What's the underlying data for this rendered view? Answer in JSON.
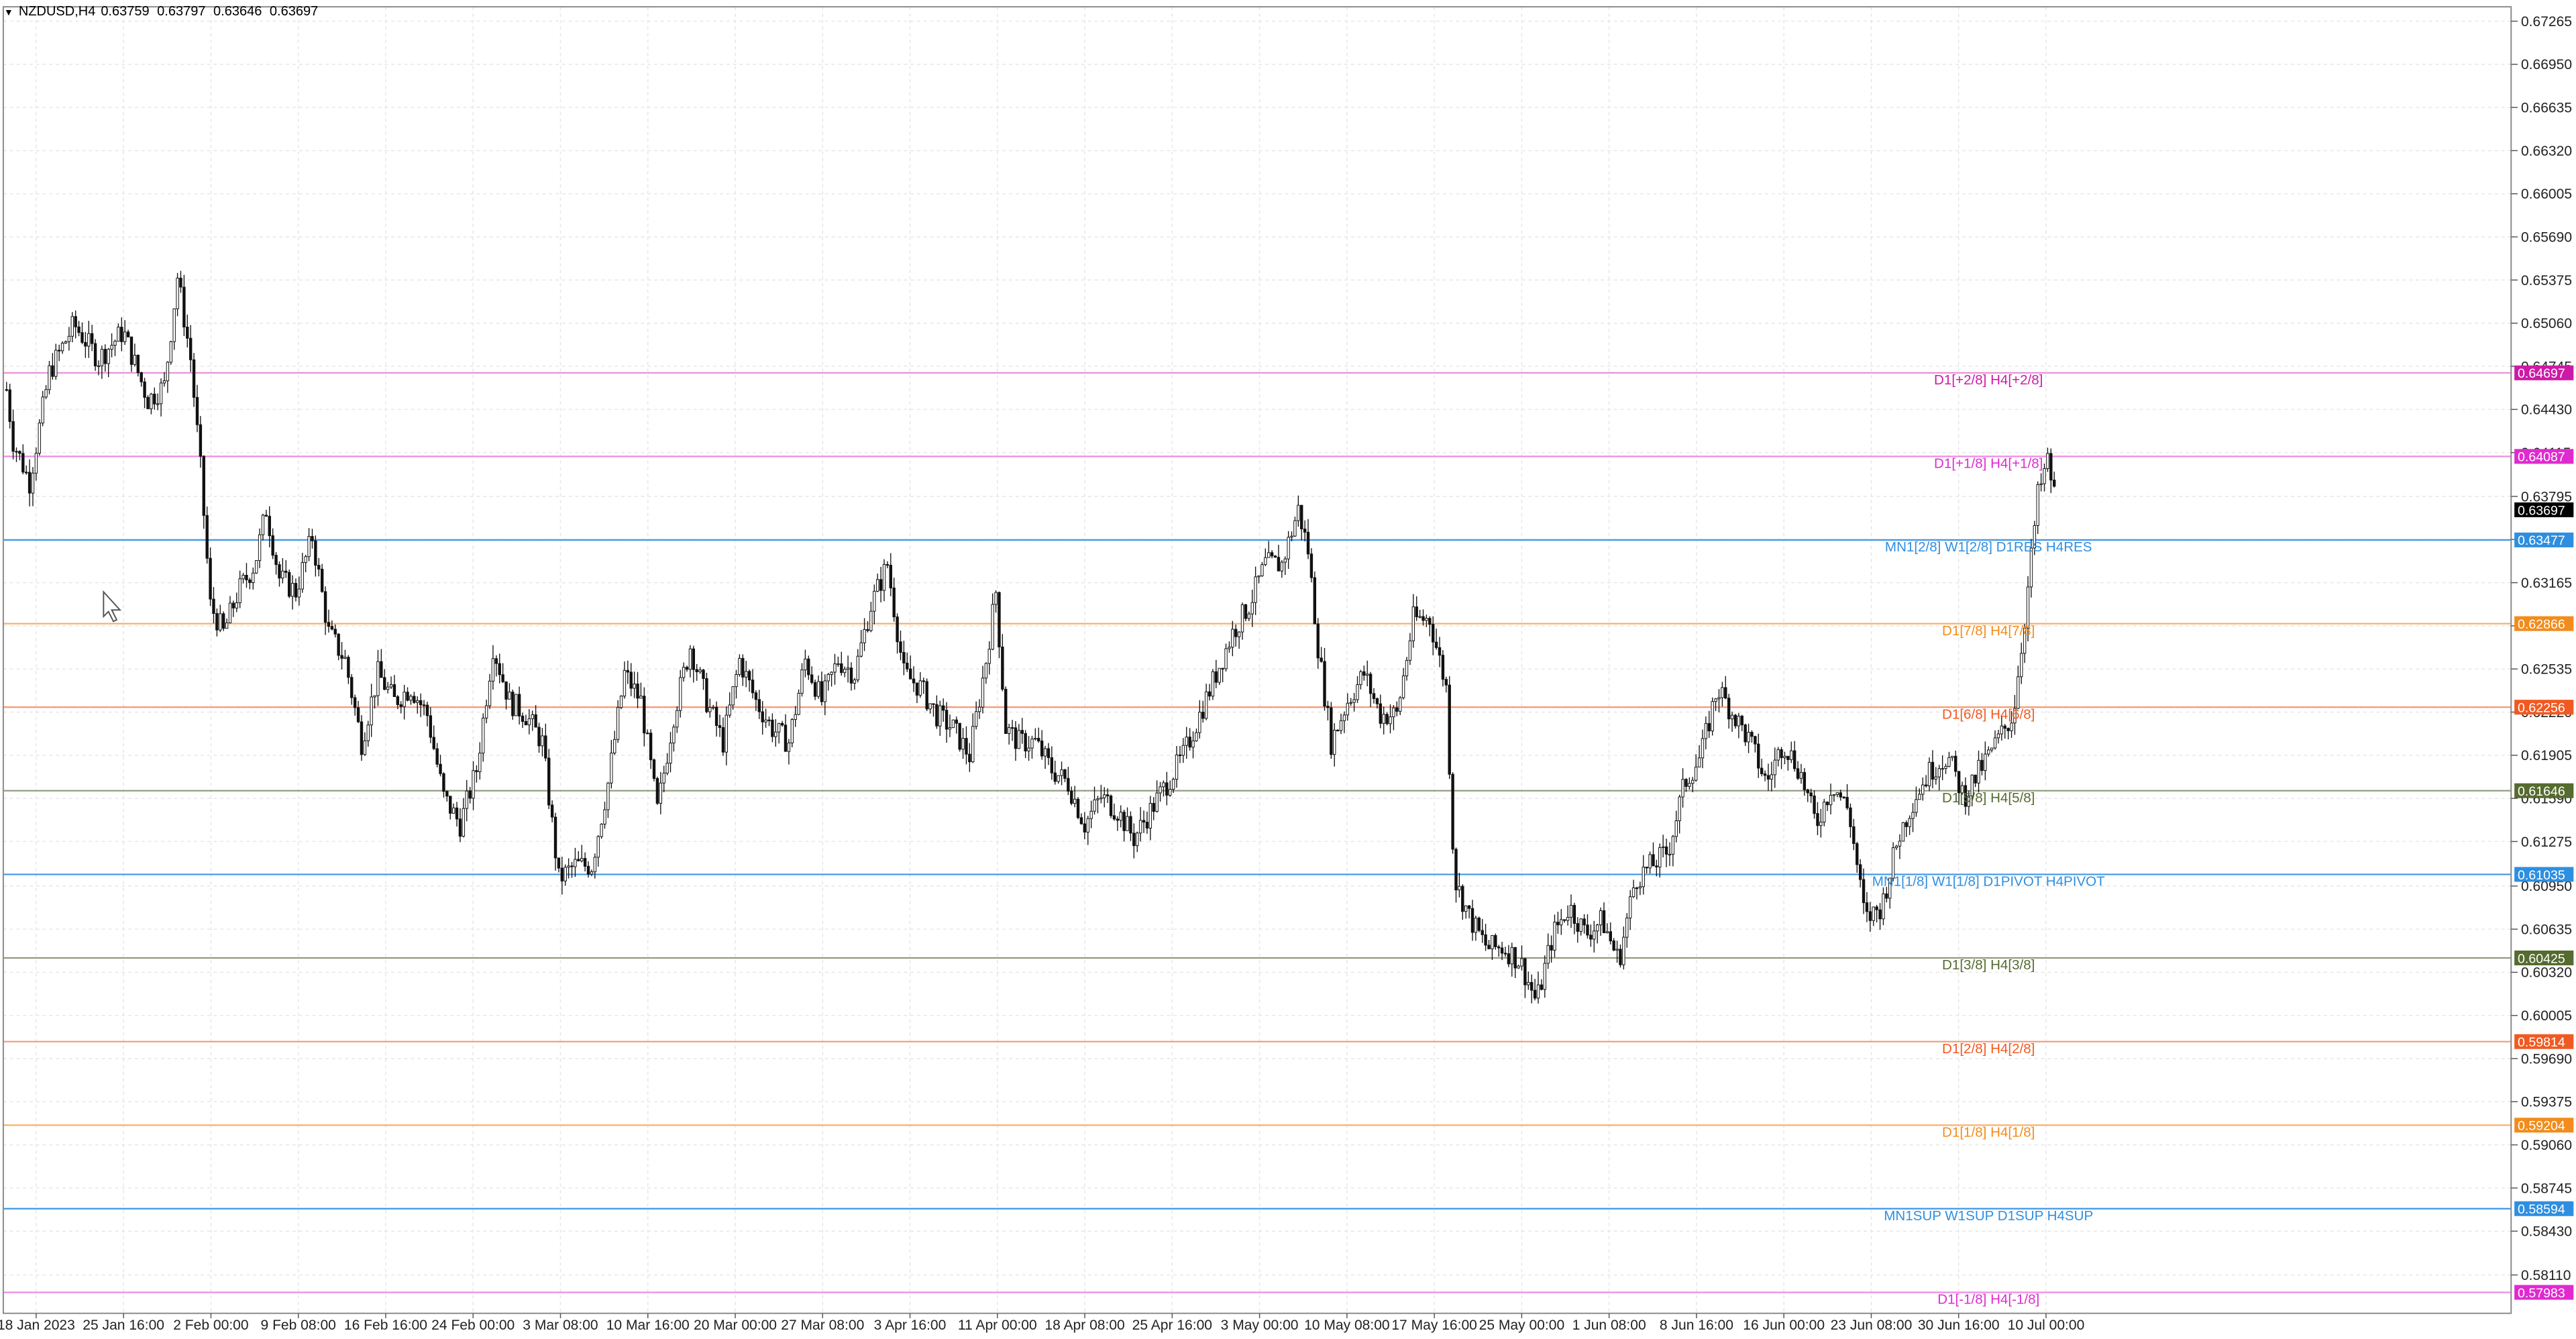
{
  "window": {
    "symbol": "NZDUSD,H4",
    "ohlc": [
      "0.63759",
      "0.63797",
      "0.63646",
      "0.63697"
    ]
  },
  "chart_data": {
    "type": "candlestick",
    "symbol": "NZDUSD",
    "timeframe": "H4",
    "ylim": [
      0.5783,
      0.6737
    ],
    "price_ticks": [
      "0.67265",
      "0.66950",
      "0.66635",
      "0.66320",
      "0.66005",
      "0.65690",
      "0.65375",
      "0.65060",
      "0.64745",
      "0.64430",
      "0.64115",
      "0.63795",
      "0.63480",
      "0.63165",
      "0.62850",
      "0.62535",
      "0.62220",
      "0.61905",
      "0.61590",
      "0.61275",
      "0.60950",
      "0.60635",
      "0.60320",
      "0.60005",
      "0.59690",
      "0.59375",
      "0.59060",
      "0.58745",
      "0.58430",
      "0.58110"
    ],
    "time_ticks": [
      "18 Jan 2023",
      "25 Jan 16:00",
      "2 Feb 00:00",
      "9 Feb 08:00",
      "16 Feb 16:00",
      "24 Feb 00:00",
      "3 Mar 08:00",
      "10 Mar 16:00",
      "20 Mar 00:00",
      "27 Mar 08:00",
      "3 Apr 16:00",
      "11 Apr 00:00",
      "18 Apr 08:00",
      "25 Apr 16:00",
      "3 May 00:00",
      "10 May 08:00",
      "17 May 16:00",
      "25 May 00:00",
      "1 Jun 08:00",
      "8 Jun 16:00",
      "16 Jun 00:00",
      "23 Jun 08:00",
      "30 Jun 16:00",
      "10 Jul 00:00"
    ],
    "current_price": {
      "value": 0.63697,
      "label": "0.63697",
      "color": "#000000"
    },
    "levels": [
      {
        "value": 0.64697,
        "label": "D1[+2/8] H4[+2/8]",
        "price_label": "0.64697",
        "color": "#cc1aa7",
        "line": "#e98ad6"
      },
      {
        "value": 0.64087,
        "label": "D1[+1/8] H4[+1/8]",
        "price_label": "0.64087",
        "color": "#e02ad0",
        "line": "#ee8ce6"
      },
      {
        "value": 0.63477,
        "label": "MN1[2/8] W1[2/8] D1RES H4RES",
        "price_label": "0.63477",
        "color": "#2e8fe0",
        "line": "#3f97e6"
      },
      {
        "value": 0.62866,
        "label": "D1[7/8] H4[7/8]",
        "price_label": "0.62866",
        "color": "#f28c1c",
        "line": "#f6b26b"
      },
      {
        "value": 0.62256,
        "label": "D1[6/8] H4[6/8]",
        "price_label": "0.62256",
        "color": "#f05a22",
        "line": "#f39a74"
      },
      {
        "value": 0.61646,
        "label": "D1[5/8] H4[5/8]",
        "price_label": "0.61646",
        "color": "#556b2f",
        "line": "#8d9a7a"
      },
      {
        "value": 0.61035,
        "label": "MN1[1/8] W1[1/8] D1PIVOT H4PIVOT",
        "price_label": "0.61035",
        "color": "#2e8fe0",
        "line": "#3f97e6"
      },
      {
        "value": 0.60425,
        "label": "D1[3/8] H4[3/8]",
        "price_label": "0.60425",
        "color": "#556b2f",
        "line": "#8d9a7a"
      },
      {
        "value": 0.59814,
        "label": "D1[2/8] H4[2/8]",
        "price_label": "0.59814",
        "color": "#f05a22",
        "line": "#f39a74"
      },
      {
        "value": 0.59204,
        "label": "D1[1/8] H4[1/8]",
        "price_label": "0.59204",
        "color": "#f28c1c",
        "line": "#f6b26b"
      },
      {
        "value": 0.58594,
        "label": "MN1SUP W1SUP D1SUP H4SUP",
        "price_label": "0.58594",
        "color": "#2e8fe0",
        "line": "#3f97e6"
      },
      {
        "value": 0.57983,
        "label": "D1[-1/8] H4[-1/8]",
        "price_label": "0.57983",
        "color": "#e02ad0",
        "line": "#ee8ce6"
      }
    ],
    "price_path": [
      [
        0,
        0.6495
      ],
      [
        8,
        0.642
      ],
      [
        18,
        0.639
      ],
      [
        30,
        0.647
      ],
      [
        45,
        0.6505
      ],
      [
        60,
        0.648
      ],
      [
        75,
        0.65
      ],
      [
        90,
        0.645
      ],
      [
        100,
        0.646
      ],
      [
        108,
        0.654
      ],
      [
        116,
        0.648
      ],
      [
        122,
        0.64
      ],
      [
        128,
        0.63
      ],
      [
        136,
        0.628
      ],
      [
        145,
        0.631
      ],
      [
        155,
        0.633
      ],
      [
        162,
        0.637
      ],
      [
        170,
        0.632
      ],
      [
        180,
        0.631
      ],
      [
        190,
        0.635
      ],
      [
        200,
        0.628
      ],
      [
        210,
        0.626
      ],
      [
        220,
        0.62
      ],
      [
        230,
        0.625
      ],
      [
        240,
        0.623
      ],
      [
        250,
        0.624
      ],
      [
        260,
        0.622
      ],
      [
        270,
        0.616
      ],
      [
        280,
        0.614
      ],
      [
        290,
        0.618
      ],
      [
        300,
        0.627
      ],
      [
        310,
        0.623
      ],
      [
        320,
        0.622
      ],
      [
        330,
        0.62
      ],
      [
        340,
        0.61
      ],
      [
        350,
        0.611
      ],
      [
        360,
        0.611
      ],
      [
        370,
        0.617
      ],
      [
        380,
        0.625
      ],
      [
        390,
        0.623
      ],
      [
        400,
        0.615
      ],
      [
        410,
        0.622
      ],
      [
        420,
        0.627
      ],
      [
        430,
        0.623
      ],
      [
        440,
        0.62
      ],
      [
        450,
        0.626
      ],
      [
        460,
        0.623
      ],
      [
        470,
        0.621
      ],
      [
        480,
        0.62
      ],
      [
        490,
        0.626
      ],
      [
        500,
        0.623
      ],
      [
        510,
        0.626
      ],
      [
        520,
        0.625
      ],
      [
        530,
        0.63
      ],
      [
        540,
        0.633
      ],
      [
        550,
        0.625
      ],
      [
        560,
        0.624
      ],
      [
        570,
        0.622
      ],
      [
        580,
        0.621
      ],
      [
        590,
        0.619
      ],
      [
        600,
        0.626
      ],
      [
        606,
        0.631
      ],
      [
        612,
        0.621
      ],
      [
        620,
        0.62
      ],
      [
        630,
        0.62
      ],
      [
        640,
        0.618
      ],
      [
        650,
        0.617
      ],
      [
        660,
        0.614
      ],
      [
        670,
        0.616
      ],
      [
        680,
        0.615
      ],
      [
        690,
        0.613
      ],
      [
        700,
        0.615
      ],
      [
        710,
        0.617
      ],
      [
        720,
        0.619
      ],
      [
        730,
        0.622
      ],
      [
        740,
        0.625
      ],
      [
        750,
        0.628
      ],
      [
        760,
        0.63
      ],
      [
        770,
        0.633
      ],
      [
        780,
        0.633
      ],
      [
        790,
        0.637
      ],
      [
        796,
        0.634
      ],
      [
        802,
        0.627
      ],
      [
        810,
        0.62
      ],
      [
        820,
        0.623
      ],
      [
        830,
        0.625
      ],
      [
        840,
        0.622
      ],
      [
        850,
        0.622
      ],
      [
        860,
        0.629
      ],
      [
        870,
        0.629
      ],
      [
        880,
        0.624
      ],
      [
        885,
        0.61
      ],
      [
        895,
        0.607
      ],
      [
        905,
        0.605
      ],
      [
        915,
        0.605
      ],
      [
        925,
        0.604
      ],
      [
        935,
        0.601
      ],
      [
        945,
        0.606
      ],
      [
        955,
        0.608
      ],
      [
        965,
        0.606
      ],
      [
        975,
        0.607
      ],
      [
        985,
        0.604
      ],
      [
        995,
        0.61
      ],
      [
        1005,
        0.611
      ],
      [
        1015,
        0.612
      ],
      [
        1025,
        0.617
      ],
      [
        1035,
        0.619
      ],
      [
        1045,
        0.624
      ],
      [
        1055,
        0.622
      ],
      [
        1065,
        0.62
      ],
      [
        1075,
        0.617
      ],
      [
        1085,
        0.62
      ],
      [
        1095,
        0.618
      ],
      [
        1105,
        0.614
      ],
      [
        1115,
        0.617
      ],
      [
        1125,
        0.615
      ],
      [
        1135,
        0.607
      ],
      [
        1145,
        0.608
      ],
      [
        1155,
        0.613
      ],
      [
        1165,
        0.616
      ],
      [
        1175,
        0.618
      ],
      [
        1185,
        0.619
      ],
      [
        1195,
        0.616
      ],
      [
        1205,
        0.618
      ],
      [
        1215,
        0.62
      ],
      [
        1225,
        0.622
      ],
      [
        1232,
        0.629
      ],
      [
        1240,
        0.638
      ],
      [
        1246,
        0.6405
      ],
      [
        1252,
        0.637
      ]
    ]
  }
}
